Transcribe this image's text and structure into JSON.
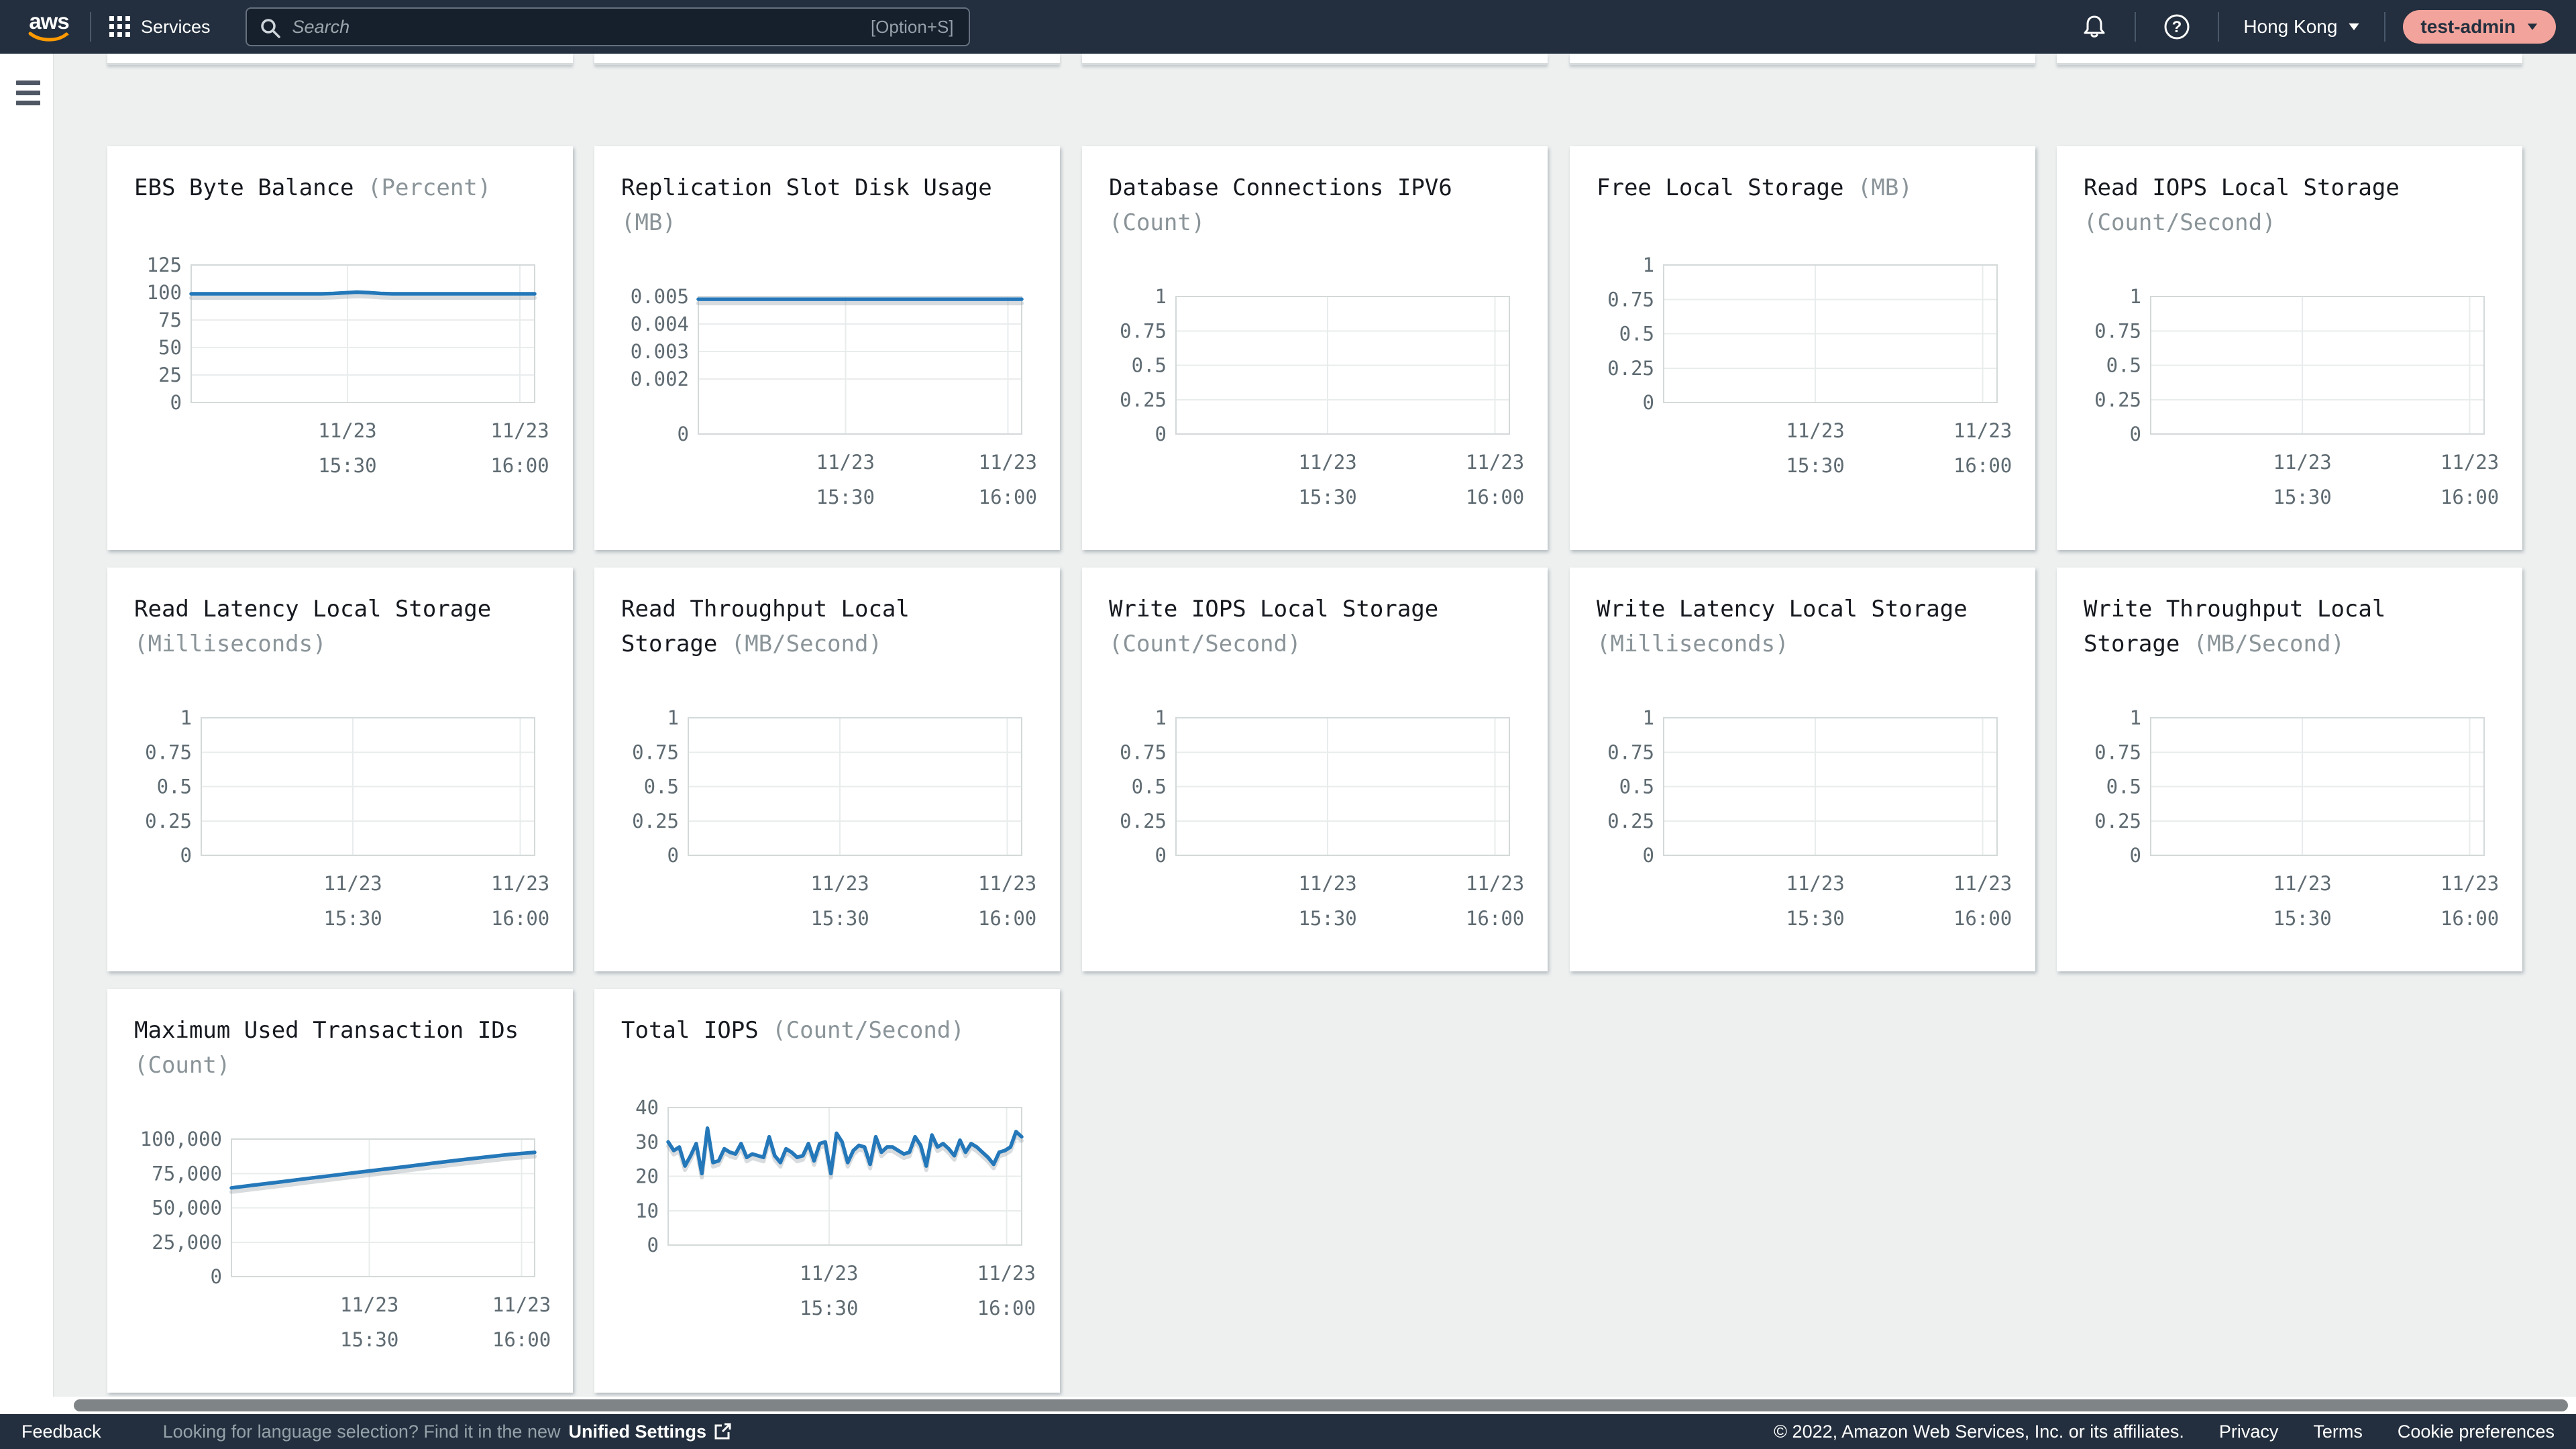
{
  "topbar": {
    "brand": "aws",
    "services_label": "Services",
    "search_placeholder": "Search",
    "search_shortcut": "[Option+S]",
    "region_label": "Hong Kong",
    "user_label": "test-admin"
  },
  "footer": {
    "feedback_label": "Feedback",
    "language_prompt": "Looking for language selection? Find it in the new",
    "unified_settings_label": "Unified Settings",
    "copyright": "© 2022, Amazon Web Services, Inc. or its affiliates.",
    "privacy_label": "Privacy",
    "terms_label": "Terms",
    "cookie_label": "Cookie preferences"
  },
  "colors": {
    "navbar_bg": "#232f3e",
    "page_bg": "#eef0f0",
    "line_blue": "#2478b9",
    "user_badge_bg": "#f2a49c",
    "aws_orange": "#ff9900",
    "tick_text": "#5f6b72",
    "grid_line": "#e9eced",
    "plot_border": "#d4d9d9"
  },
  "chart_data": [
    {
      "id": "ebs-byte-balance",
      "type": "line",
      "title": "EBS Byte Balance",
      "unit": "Percent",
      "heading_lines": [
        "EBS Byte Balance (Percent)"
      ],
      "ylim": [
        0,
        125
      ],
      "ytick_labels": [
        "125",
        "100",
        "75",
        "50",
        "25",
        "0"
      ],
      "ytick_values": [
        125,
        100,
        75,
        50,
        25,
        0
      ],
      "x_labels": [
        [
          "11/23",
          "15:30"
        ],
        [
          "11/23",
          "16:00"
        ]
      ],
      "x_label_positions": [
        0.455,
        0.957
      ],
      "series": [
        {
          "values": [
            98.8,
            98.8,
            98.8,
            98.8,
            98.8,
            98.8,
            98.8,
            98.8,
            98.8,
            98.8,
            98.8,
            98.8,
            99.1,
            99.7,
            100.3,
            99.8,
            99.1,
            98.8,
            98.8,
            98.8,
            98.8,
            98.8,
            98.8,
            98.8,
            98.8,
            98.8,
            98.8,
            98.8,
            98.8,
            98.8
          ]
        }
      ]
    },
    {
      "id": "replication-slot-disk-usage",
      "type": "line",
      "title": "Replication Slot Disk Usage",
      "unit": "MB",
      "heading_lines": [
        "Replication Slot Disk Usage",
        "(MB)"
      ],
      "ylim": [
        0,
        0.005
      ],
      "ytick_labels": [
        "0.005",
        "0.004",
        "0.003",
        "0.002",
        "0"
      ],
      "ytick_values": [
        0.005,
        0.004,
        0.003,
        0.002,
        0
      ],
      "x_labels": [
        [
          "11/23",
          "15:30"
        ],
        [
          "11/23",
          "16:00"
        ]
      ],
      "x_label_positions": [
        0.455,
        0.957
      ],
      "series": [
        {
          "values": [
            0.0049,
            0.0049,
            0.0049,
            0.0049,
            0.0049,
            0.0049,
            0.0049,
            0.0049,
            0.0049,
            0.0049,
            0.0049
          ]
        }
      ]
    },
    {
      "id": "database-connections-ipv6",
      "type": "line",
      "title": "Database Connections IPV6",
      "unit": "Count",
      "heading_lines": [
        "Database Connections IPV6",
        "(Count)"
      ],
      "ylim": [
        0,
        1
      ],
      "ytick_labels": [
        "1",
        "0.75",
        "0.5",
        "0.25",
        "0"
      ],
      "ytick_values": [
        1,
        0.75,
        0.5,
        0.25,
        0
      ],
      "x_labels": [
        [
          "11/23",
          "15:30"
        ],
        [
          "11/23",
          "16:00"
        ]
      ],
      "x_label_positions": [
        0.455,
        0.957
      ],
      "series": []
    },
    {
      "id": "free-local-storage",
      "type": "line",
      "title": "Free Local Storage",
      "unit": "MB",
      "heading_lines": [
        "Free Local Storage (MB)"
      ],
      "ylim": [
        0,
        1
      ],
      "ytick_labels": [
        "1",
        "0.75",
        "0.5",
        "0.25",
        "0"
      ],
      "ytick_values": [
        1,
        0.75,
        0.5,
        0.25,
        0
      ],
      "x_labels": [
        [
          "11/23",
          "15:30"
        ],
        [
          "11/23",
          "16:00"
        ]
      ],
      "x_label_positions": [
        0.455,
        0.957
      ],
      "series": []
    },
    {
      "id": "read-iops-local-storage",
      "type": "line",
      "title": "Read IOPS Local Storage",
      "unit": "Count/Second",
      "heading_lines": [
        "Read IOPS Local Storage",
        "(Count/Second)"
      ],
      "ylim": [
        0,
        1
      ],
      "ytick_labels": [
        "1",
        "0.75",
        "0.5",
        "0.25",
        "0"
      ],
      "ytick_values": [
        1,
        0.75,
        0.5,
        0.25,
        0
      ],
      "x_labels": [
        [
          "11/23",
          "15:30"
        ],
        [
          "11/23",
          "16:00"
        ]
      ],
      "x_label_positions": [
        0.455,
        0.957
      ],
      "series": []
    },
    {
      "id": "read-latency-local-storage",
      "type": "line",
      "title": "Read Latency Local Storage",
      "unit": "Milliseconds",
      "heading_lines": [
        "Read Latency Local Storage",
        "(Milliseconds)"
      ],
      "ylim": [
        0,
        1
      ],
      "ytick_labels": [
        "1",
        "0.75",
        "0.5",
        "0.25",
        "0"
      ],
      "ytick_values": [
        1,
        0.75,
        0.5,
        0.25,
        0
      ],
      "x_labels": [
        [
          "11/23",
          "15:30"
        ],
        [
          "11/23",
          "16:00"
        ]
      ],
      "x_label_positions": [
        0.455,
        0.957
      ],
      "series": []
    },
    {
      "id": "read-throughput-local-storage",
      "type": "line",
      "title": "Read Throughput Local Storage",
      "unit": "MB/Second",
      "heading_lines": [
        "Read Throughput Local",
        "Storage (MB/Second)"
      ],
      "ylim": [
        0,
        1
      ],
      "ytick_labels": [
        "1",
        "0.75",
        "0.5",
        "0.25",
        "0"
      ],
      "ytick_values": [
        1,
        0.75,
        0.5,
        0.25,
        0
      ],
      "x_labels": [
        [
          "11/23",
          "15:30"
        ],
        [
          "11/23",
          "16:00"
        ]
      ],
      "x_label_positions": [
        0.455,
        0.957
      ],
      "series": []
    },
    {
      "id": "write-iops-local-storage",
      "type": "line",
      "title": "Write IOPS Local Storage",
      "unit": "Count/Second",
      "heading_lines": [
        "Write IOPS Local Storage",
        "(Count/Second)"
      ],
      "ylim": [
        0,
        1
      ],
      "ytick_labels": [
        "1",
        "0.75",
        "0.5",
        "0.25",
        "0"
      ],
      "ytick_values": [
        1,
        0.75,
        0.5,
        0.25,
        0
      ],
      "x_labels": [
        [
          "11/23",
          "15:30"
        ],
        [
          "11/23",
          "16:00"
        ]
      ],
      "x_label_positions": [
        0.455,
        0.957
      ],
      "series": []
    },
    {
      "id": "write-latency-local-storage",
      "type": "line",
      "title": "Write Latency Local Storage",
      "unit": "Milliseconds",
      "heading_lines": [
        "Write Latency Local Storage",
        "(Milliseconds)"
      ],
      "ylim": [
        0,
        1
      ],
      "ytick_labels": [
        "1",
        "0.75",
        "0.5",
        "0.25",
        "0"
      ],
      "ytick_values": [
        1,
        0.75,
        0.5,
        0.25,
        0
      ],
      "x_labels": [
        [
          "11/23",
          "15:30"
        ],
        [
          "11/23",
          "16:00"
        ]
      ],
      "x_label_positions": [
        0.455,
        0.957
      ],
      "series": []
    },
    {
      "id": "write-throughput-local-storage",
      "type": "line",
      "title": "Write Throughput Local Storage",
      "unit": "MB/Second",
      "heading_lines": [
        "Write Throughput Local",
        "Storage (MB/Second)"
      ],
      "ylim": [
        0,
        1
      ],
      "ytick_labels": [
        "1",
        "0.75",
        "0.5",
        "0.25",
        "0"
      ],
      "ytick_values": [
        1,
        0.75,
        0.5,
        0.25,
        0
      ],
      "x_labels": [
        [
          "11/23",
          "15:30"
        ],
        [
          "11/23",
          "16:00"
        ]
      ],
      "x_label_positions": [
        0.455,
        0.957
      ],
      "series": []
    },
    {
      "id": "maximum-used-transaction-ids",
      "type": "line",
      "title": "Maximum Used Transaction IDs",
      "unit": "Count",
      "heading_lines": [
        "Maximum Used Transaction IDs",
        "(Count)"
      ],
      "ylim": [
        0,
        100000
      ],
      "ytick_labels": [
        "100,000",
        "75,000",
        "50,000",
        "25,000",
        "0"
      ],
      "ytick_values": [
        100000,
        75000,
        50000,
        25000,
        0
      ],
      "x_labels": [
        [
          "11/23",
          "15:30"
        ],
        [
          "11/23",
          "16:00"
        ]
      ],
      "x_label_positions": [
        0.455,
        0.957
      ],
      "series": [
        {
          "values": [
            64500,
            66800,
            69000,
            71300,
            73500,
            75800,
            78000,
            80200,
            82500,
            84700,
            86800,
            88800,
            90300
          ]
        }
      ]
    },
    {
      "id": "total-iops",
      "type": "line",
      "title": "Total IOPS",
      "unit": "Count/Second",
      "heading_lines": [
        "Total IOPS (Count/Second)"
      ],
      "ylim": [
        0,
        40
      ],
      "ytick_labels": [
        "40",
        "30",
        "20",
        "10",
        "0"
      ],
      "ytick_values": [
        40,
        30,
        20,
        10,
        0
      ],
      "x_labels": [
        [
          "11/23",
          "15:30"
        ],
        [
          "11/23",
          "16:00"
        ]
      ],
      "x_label_positions": [
        0.455,
        0.957
      ],
      "series": [
        {
          "values": [
            30,
            27.5,
            28.5,
            23,
            26,
            29.5,
            20.8,
            34,
            24,
            24.5,
            28,
            27,
            26.5,
            29.5,
            25.5,
            26.5,
            26,
            25.5,
            31.5,
            26,
            24,
            28,
            27,
            25.5,
            26,
            29.5,
            24.5,
            29.5,
            30,
            20.8,
            32.5,
            30,
            24,
            27.5,
            29,
            28.5,
            23.5,
            31.5,
            27,
            28.5,
            28.5,
            27.5,
            26.5,
            27,
            31.5,
            29,
            23,
            32,
            28.5,
            29.5,
            28,
            26,
            30.5,
            27,
            29.5,
            28.5,
            27,
            25.5,
            23.5,
            27,
            27.5,
            28.5,
            33,
            31.5
          ]
        }
      ]
    }
  ]
}
